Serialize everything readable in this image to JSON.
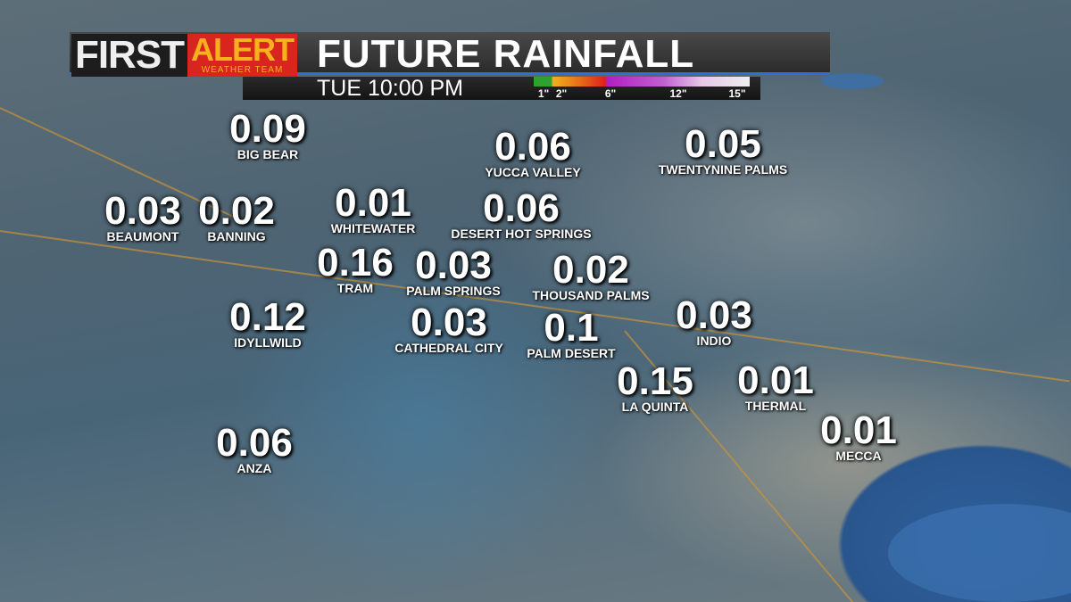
{
  "header": {
    "brand_first": "FIRST",
    "brand_alert": "ALERT",
    "brand_team": "WEATHER TEAM",
    "title": "FUTURE RAINFALL",
    "time": "TUE 10:00 PM"
  },
  "legend": {
    "ticks": [
      "1\"",
      "2\"",
      "6\"",
      "12\"",
      "15\""
    ],
    "colors": [
      "#2fa12f",
      "#f0b020",
      "#e0201a",
      "#b020c0",
      "#eeeeee"
    ]
  },
  "locations": [
    {
      "name": "BIG BEAR",
      "value": "0.09"
    },
    {
      "name": "BEAUMONT",
      "value": "0.03"
    },
    {
      "name": "BANNING",
      "value": "0.02"
    },
    {
      "name": "WHITEWATER",
      "value": "0.01"
    },
    {
      "name": "TRAM",
      "value": "0.16"
    },
    {
      "name": "PALM SPRINGS",
      "value": "0.03"
    },
    {
      "name": "YUCCA VALLEY",
      "value": "0.06"
    },
    {
      "name": "DESERT HOT SPRINGS",
      "value": "0.06"
    },
    {
      "name": "TWENTYNINE PALMS",
      "value": "0.05"
    },
    {
      "name": "THOUSAND PALMS",
      "value": "0.02"
    },
    {
      "name": "IDYLLWILD",
      "value": "0.12"
    },
    {
      "name": "CATHEDRAL CITY",
      "value": "0.03"
    },
    {
      "name": "PALM DESERT",
      "value": "0.1"
    },
    {
      "name": "INDIO",
      "value": "0.03"
    },
    {
      "name": "LA QUINTA",
      "value": "0.15"
    },
    {
      "name": "THERMAL",
      "value": "0.01"
    },
    {
      "name": "MECCA",
      "value": "0.01"
    },
    {
      "name": "ANZA",
      "value": "0.06"
    }
  ]
}
